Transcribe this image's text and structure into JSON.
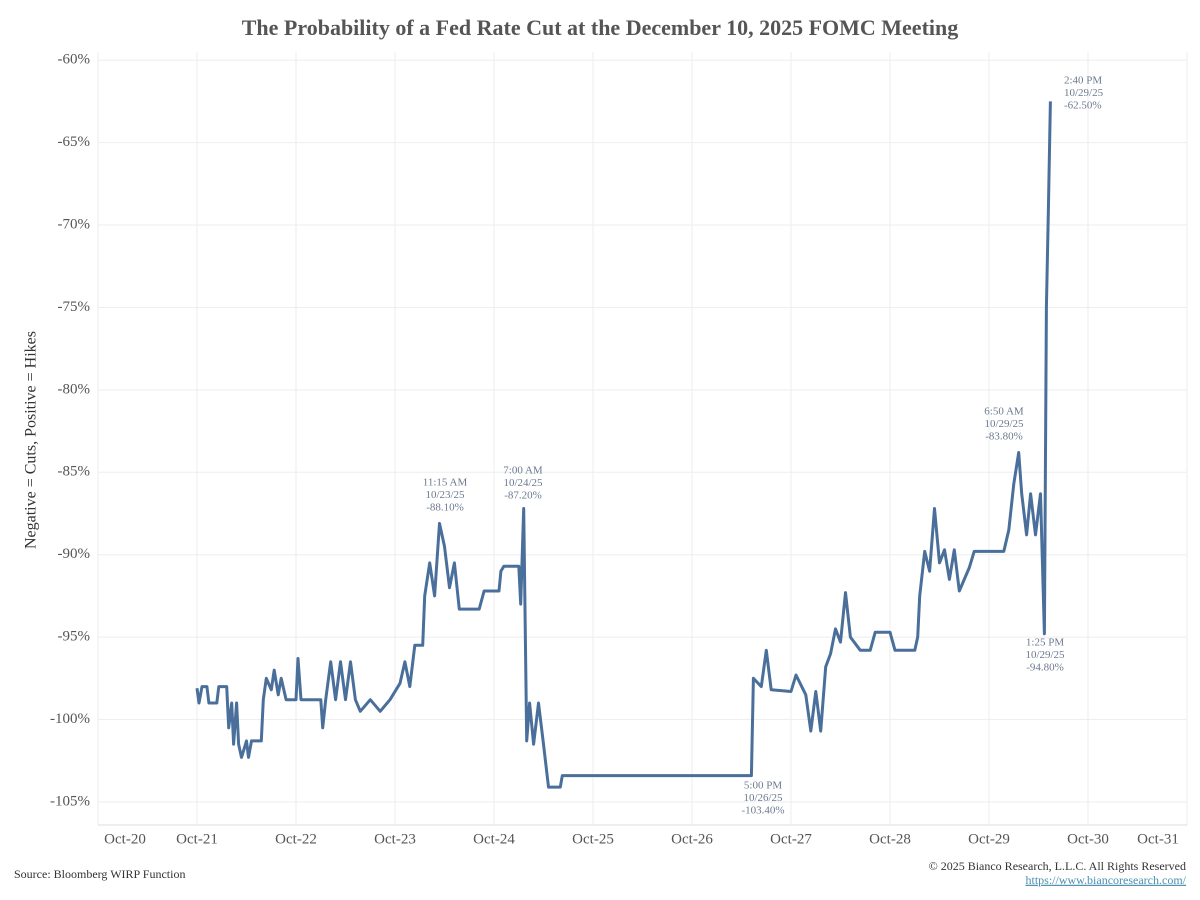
{
  "chart_data": {
    "type": "line",
    "title": "The Probability of a Fed Rate Cut at the December 10, 2025 FOMC Meeting",
    "y_label": "Negative = Cuts, Positive = Hikes",
    "source": "Source: Bloomberg WIRP Function",
    "copyright": "© 2025 Bianco Research, L.L.C. All Rights Reserved",
    "url": "https://www.biancoresearch.com/",
    "xlim": [
      20,
      31
    ],
    "ylim": [
      -106.4,
      -59.5
    ],
    "grid": true,
    "xticks": [
      {
        "value": 20,
        "label": "Oct-20"
      },
      {
        "value": 21,
        "label": "Oct-21"
      },
      {
        "value": 22,
        "label": "Oct-22"
      },
      {
        "value": 23,
        "label": "Oct-23"
      },
      {
        "value": 24,
        "label": "Oct-24"
      },
      {
        "value": 25,
        "label": "Oct-25"
      },
      {
        "value": 26,
        "label": "Oct-26"
      },
      {
        "value": 27,
        "label": "Oct-27"
      },
      {
        "value": 28,
        "label": "Oct-28"
      },
      {
        "value": 29,
        "label": "Oct-29"
      },
      {
        "value": 30,
        "label": "Oct-30"
      },
      {
        "value": 31,
        "label": "Oct-31"
      }
    ],
    "yticks": [
      {
        "value": -60,
        "label": "-60%"
      },
      {
        "value": -65,
        "label": "-65%"
      },
      {
        "value": -70,
        "label": "-70%"
      },
      {
        "value": -75,
        "label": "-75%"
      },
      {
        "value": -80,
        "label": "-80%"
      },
      {
        "value": -85,
        "label": "-85%"
      },
      {
        "value": -90,
        "label": "-90%"
      },
      {
        "value": -95,
        "label": "-95%"
      },
      {
        "value": -100,
        "label": "-100%"
      },
      {
        "value": -105,
        "label": "-105%"
      }
    ],
    "series": [
      {
        "color": "#4a6f9b",
        "x": [
          21.0,
          21.02,
          21.05,
          21.1,
          21.12,
          21.2,
          21.22,
          21.3,
          21.32,
          21.35,
          21.37,
          21.4,
          21.42,
          21.45,
          21.5,
          21.52,
          21.55,
          21.65,
          21.67,
          21.7,
          21.75,
          21.78,
          21.82,
          21.85,
          21.9,
          22.0,
          22.02,
          22.05,
          22.25,
          22.27,
          22.3,
          22.35,
          22.4,
          22.45,
          22.5,
          22.55,
          22.6,
          22.65,
          22.75,
          22.85,
          22.95,
          23.05,
          23.1,
          23.15,
          23.2,
          23.28,
          23.3,
          23.35,
          23.4,
          23.45,
          23.5,
          23.55,
          23.6,
          23.65,
          23.85,
          23.9,
          24.05,
          24.07,
          24.1,
          24.25,
          24.27,
          24.3,
          24.33,
          24.36,
          24.4,
          24.45,
          24.5,
          24.55,
          24.67,
          24.69,
          26.6,
          26.62,
          26.7,
          26.75,
          26.8,
          27.0,
          27.05,
          27.15,
          27.2,
          27.25,
          27.3,
          27.35,
          27.4,
          27.45,
          27.5,
          27.55,
          27.6,
          27.7,
          27.8,
          27.85,
          28.0,
          28.05,
          28.25,
          28.28,
          28.3,
          28.35,
          28.4,
          28.45,
          28.5,
          28.55,
          28.6,
          28.65,
          28.7,
          28.8,
          28.85,
          29.15,
          29.2,
          29.25,
          29.3,
          29.33,
          29.38,
          29.42,
          29.47,
          29.52,
          29.56,
          29.58,
          29.6,
          29.62
        ],
        "values": [
          -98.1,
          -99.0,
          -98.0,
          -98.0,
          -99.0,
          -99.0,
          -98.0,
          -98.0,
          -100.5,
          -99.0,
          -101.5,
          -99.0,
          -101.5,
          -102.3,
          -101.3,
          -102.3,
          -101.3,
          -101.3,
          -98.8,
          -97.5,
          -98.2,
          -97.0,
          -98.5,
          -97.5,
          -98.8,
          -98.8,
          -96.3,
          -98.8,
          -98.8,
          -100.5,
          -98.8,
          -96.5,
          -98.8,
          -96.5,
          -98.8,
          -96.5,
          -98.8,
          -99.5,
          -98.8,
          -99.5,
          -98.8,
          -97.8,
          -96.5,
          -98.0,
          -95.5,
          -95.5,
          -92.5,
          -90.5,
          -92.5,
          -88.1,
          -89.5,
          -92.0,
          -90.5,
          -93.3,
          -93.3,
          -92.2,
          -92.2,
          -91.0,
          -90.7,
          -90.7,
          -93.0,
          -87.2,
          -101.3,
          -99.0,
          -101.5,
          -99.0,
          -101.5,
          -104.1,
          -104.1,
          -103.4,
          -103.4,
          -97.5,
          -98.0,
          -95.8,
          -98.2,
          -98.3,
          -97.3,
          -98.5,
          -100.7,
          -98.3,
          -100.7,
          -96.8,
          -96.0,
          -94.5,
          -95.3,
          -92.3,
          -95.0,
          -95.8,
          -95.8,
          -94.7,
          -94.7,
          -95.8,
          -95.8,
          -95.0,
          -92.5,
          -89.8,
          -91.0,
          -87.2,
          -90.5,
          -89.7,
          -91.5,
          -89.7,
          -92.2,
          -90.8,
          -89.8,
          -89.8,
          -88.5,
          -85.7,
          -83.8,
          -86.3,
          -88.8,
          -86.3,
          -88.8,
          -86.3,
          -94.8,
          -75.0,
          -69.0,
          -62.5
        ]
      }
    ],
    "annotations": [
      {
        "lines": [
          "11:15 AM",
          "10/23/25",
          "-88.10%"
        ]
      },
      {
        "lines": [
          "7:00 AM",
          "10/24/25",
          "-87.20%"
        ]
      },
      {
        "lines": [
          "5:00 PM",
          "10/26/25",
          "-103.40%"
        ]
      },
      {
        "lines": [
          "6:50 AM",
          "10/29/25",
          "-83.80%"
        ]
      },
      {
        "lines": [
          "1:25 PM",
          "10/29/25",
          "-94.80%"
        ]
      },
      {
        "lines": [
          "2:40 PM",
          "10/29/25",
          "-62.50%"
        ]
      }
    ]
  }
}
